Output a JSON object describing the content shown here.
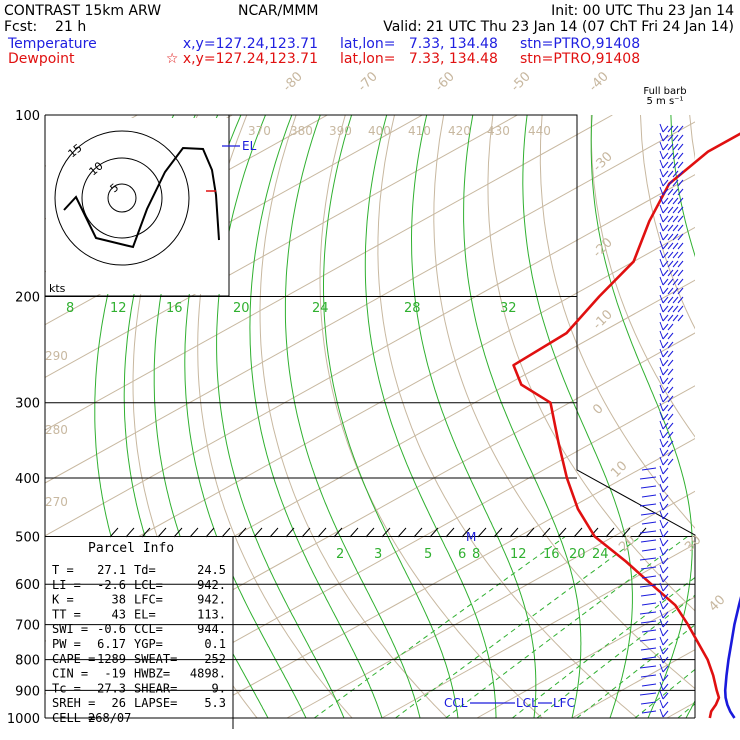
{
  "header": {
    "line1_left": "CONTRAST 15km ARW",
    "line1_center": "NCAR/MMM",
    "line1_right": "Init: 00 UTC Thu 23 Jan 14",
    "line2_left": "Fcst:    21 h",
    "line2_right": "Valid: 21 UTC Thu 23 Jan 14 (07 ChT Fri 24 Jan 14)",
    "temp_label": "Temperature",
    "temp_xy": "x,y=127.24,123.71",
    "temp_latlon": "lat,lon=   7.33, 134.48",
    "temp_stn": "stn=PTRO,91408",
    "dew_label": "Dewpoint",
    "dew_xy": "☆ x,y=127.24,123.71",
    "dew_latlon": "lat,lon=   7.33, 134.48",
    "dew_stn": "stn=PTRO,91408",
    "barb_title_1": "Full barb",
    "barb_title_2": "5 m s⁻¹"
  },
  "colors": {
    "temperature": "#1a1adc",
    "dewpoint": "#e01010",
    "isotherm": "#c8b8a0",
    "theta": "#c8b8a0",
    "mixing": "#30b030",
    "moist": "#30b030",
    "isobar": "#000000",
    "header_blue": "#2020e0",
    "header_red": "#e01010"
  },
  "chart_data": {
    "type": "line",
    "title": "",
    "xlabel": "",
    "ylabel": "",
    "pressure_ticks": [
      "100",
      "200",
      "300",
      "400",
      "500",
      "600",
      "700",
      "800",
      "900",
      "1000"
    ],
    "pressure_levels": [
      100,
      200,
      300,
      400,
      500,
      600,
      700,
      800,
      900,
      1000
    ],
    "isotherm_labels": [
      "-80",
      "-70",
      "-60",
      "-50",
      "-40",
      "-30",
      "-20",
      "-10",
      "0",
      "10",
      "20",
      "30",
      "40"
    ],
    "theta_labels": [
      "370",
      "380",
      "390",
      "400",
      "410",
      "420",
      "430",
      "440",
      "290",
      "280",
      "270"
    ],
    "mixing_ratio_labels_200": [
      "8",
      "12",
      "16",
      "20",
      "24",
      "28",
      "32"
    ],
    "mixing_ratio_labels_550": [
      "2",
      "3",
      "5",
      "6",
      "8",
      "12",
      "16",
      "20",
      "24"
    ],
    "series": [
      {
        "name": "Temperature",
        "points": [
          {
            "p": 1000,
            "t": 27.1
          },
          {
            "p": 975,
            "t": 25.4
          },
          {
            "p": 950,
            "t": 23.8
          },
          {
            "p": 925,
            "t": 22.3
          },
          {
            "p": 900,
            "t": 20.9
          },
          {
            "p": 850,
            "t": 18.2
          },
          {
            "p": 800,
            "t": 15.4
          },
          {
            "p": 750,
            "t": 12.5
          },
          {
            "p": 700,
            "t": 9.4
          },
          {
            "p": 650,
            "t": 6.2
          },
          {
            "p": 600,
            "t": 2.8
          },
          {
            "p": 550,
            "t": -0.8
          },
          {
            "p": 500,
            "t": -4.6
          },
          {
            "p": 450,
            "t": -9.0
          },
          {
            "p": 400,
            "t": -14.0
          },
          {
            "p": 350,
            "t": -20.0
          },
          {
            "p": 300,
            "t": -27.5
          },
          {
            "p": 250,
            "t": -37.0
          },
          {
            "p": 200,
            "t": -49.5
          },
          {
            "p": 175,
            "t": -57.0
          },
          {
            "p": 150,
            "t": -65.5
          },
          {
            "p": 130,
            "t": -72.5
          },
          {
            "p": 113,
            "t": -79.0
          },
          {
            "p": 100,
            "t": -80.5
          }
        ]
      },
      {
        "name": "Dewpoint",
        "points": [
          {
            "p": 1000,
            "t": 24.5
          },
          {
            "p": 975,
            "t": 23.4
          },
          {
            "p": 950,
            "t": 22.6
          },
          {
            "p": 925,
            "t": 21.6
          },
          {
            "p": 900,
            "t": 20.0
          },
          {
            "p": 850,
            "t": 16.8
          },
          {
            "p": 800,
            "t": 13.2
          },
          {
            "p": 750,
            "t": 9.0
          },
          {
            "p": 700,
            "t": 4.5
          },
          {
            "p": 650,
            "t": -0.5
          },
          {
            "p": 600,
            "t": -7.0
          },
          {
            "p": 550,
            "t": -14.0
          },
          {
            "p": 500,
            "t": -22.0
          },
          {
            "p": 450,
            "t": -29.0
          },
          {
            "p": 400,
            "t": -36.0
          },
          {
            "p": 350,
            "t": -43.5
          },
          {
            "p": 300,
            "t": -52.0
          },
          {
            "p": 280,
            "t": -58.5
          },
          {
            "p": 260,
            "t": -63.0
          },
          {
            "p": 230,
            "t": -63.5
          },
          {
            "p": 200,
            "t": -67.0
          },
          {
            "p": 175,
            "t": -70.0
          },
          {
            "p": 150,
            "t": -76.0
          },
          {
            "p": 130,
            "t": -81.0
          },
          {
            "p": 115,
            "t": -83.0
          },
          {
            "p": 100,
            "t": -83.0
          }
        ]
      }
    ],
    "level_labels": [
      {
        "label": "EL",
        "p": 113
      },
      {
        "label": "M",
        "p": 500
      },
      {
        "label": "CCL",
        "p": 944
      },
      {
        "label": "LCL",
        "p": 942
      },
      {
        "label": "LFC",
        "p": 942
      }
    ],
    "hodograph": {
      "units_label": "kts",
      "ring_labels": [
        "5",
        "10",
        "15"
      ]
    }
  },
  "parcel_info": {
    "title": "Parcel Info",
    "rows": [
      {
        "k1": "T",
        "v1": "27.1",
        "k2": "Td",
        "v2": "24.5"
      },
      {
        "k1": "LI",
        "v1": "-2.6",
        "k2": "LCL",
        "v2": "942."
      },
      {
        "k1": "K",
        "v1": "38",
        "k2": "LFC",
        "v2": "942."
      },
      {
        "k1": "TT",
        "v1": "43",
        "k2": "EL",
        "v2": "113."
      },
      {
        "k1": "SWI",
        "v1": "-0.6",
        "k2": "CCL",
        "v2": "944."
      },
      {
        "k1": "PW",
        "v1": "6.17",
        "k2": "YGP",
        "v2": "0.1"
      },
      {
        "k1": "CAPE",
        "v1": "1289",
        "k2": "SWEAT",
        "v2": "252"
      },
      {
        "k1": "CIN",
        "v1": "-19",
        "k2": "HWBZ",
        "v2": "4898."
      },
      {
        "k1": "Tc",
        "v1": "27.3",
        "k2": "SHEAR",
        "v2": "9."
      },
      {
        "k1": "SREH",
        "v1": "26",
        "k2": "LAPSE",
        "v2": "5.3"
      },
      {
        "k1": "CELL",
        "v1": "268/07",
        "k2": "",
        "v2": ""
      }
    ]
  }
}
